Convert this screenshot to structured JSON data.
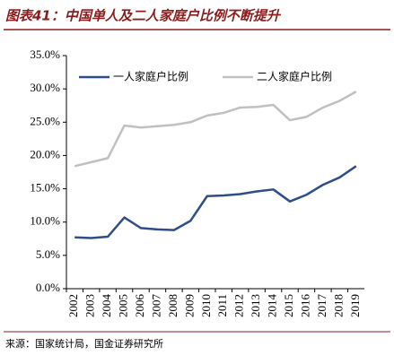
{
  "chart_data": {
    "type": "line",
    "title": "图表41：中国单人及二人家庭户比例不断提升",
    "source": "来源：国家统计局，国金证券研究所",
    "categories": [
      "2002",
      "2003",
      "2004",
      "2005",
      "2006",
      "2007",
      "2008",
      "2009",
      "2010",
      "2011",
      "2012",
      "2013",
      "2014",
      "2015",
      "2016",
      "2017",
      "2018",
      "2019"
    ],
    "series": [
      {
        "name": "一人家庭户比例",
        "color": "#2e4d8a",
        "values": [
          7.7,
          7.6,
          7.8,
          10.7,
          9.1,
          8.9,
          8.8,
          10.2,
          13.9,
          14.0,
          14.2,
          14.6,
          14.9,
          13.1,
          14.1,
          15.6,
          16.7,
          18.4
        ]
      },
      {
        "name": "二人家庭户比例",
        "color": "#c0c0c0",
        "values": [
          18.4,
          19.0,
          19.6,
          24.5,
          24.2,
          24.4,
          24.6,
          25.0,
          26.0,
          26.4,
          27.2,
          27.3,
          27.6,
          25.3,
          25.8,
          27.2,
          28.2,
          29.6
        ]
      }
    ],
    "ylim": [
      0,
      35
    ],
    "yticks": [
      {
        "value": 0,
        "label": "0.0%"
      },
      {
        "value": 5,
        "label": "5.0%"
      },
      {
        "value": 10,
        "label": "10.0%"
      },
      {
        "value": 15,
        "label": "15.0%"
      },
      {
        "value": 20,
        "label": "20.0%"
      },
      {
        "value": 25,
        "label": "25.0%"
      },
      {
        "value": 30,
        "label": "30.0%"
      },
      {
        "value": 35,
        "label": "35.0%"
      }
    ],
    "legend": "top-left"
  }
}
